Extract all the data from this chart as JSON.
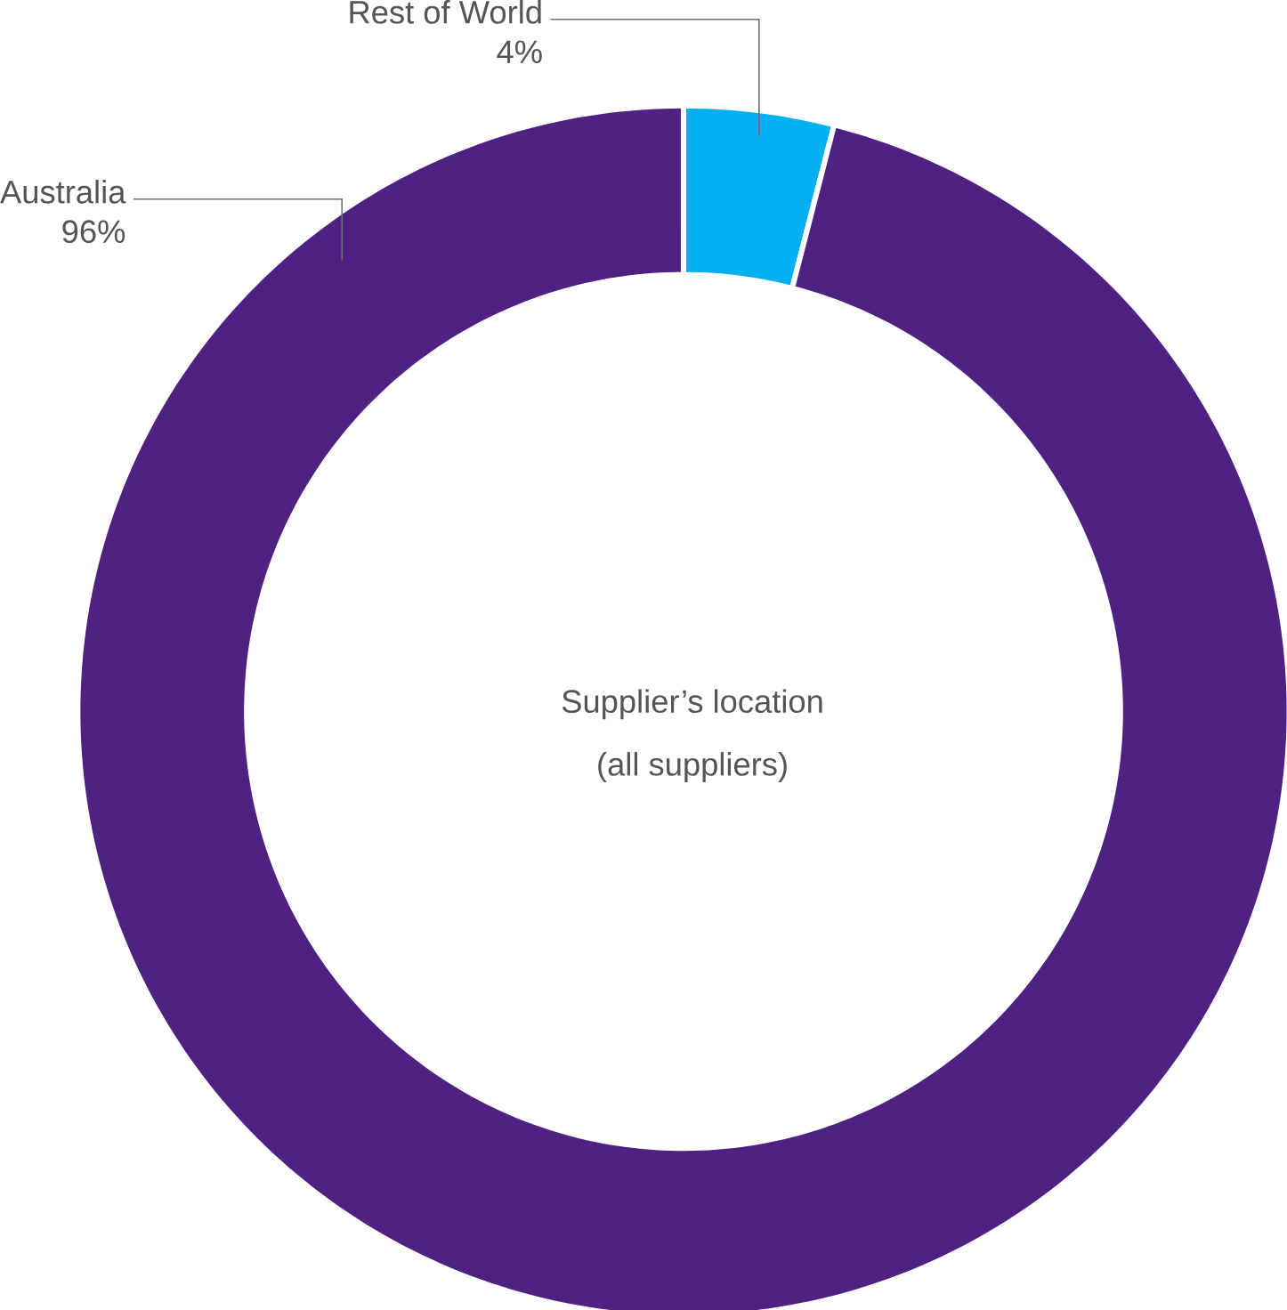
{
  "chart_data": {
    "type": "donut",
    "title": "Supplier’s location",
    "subtitle": "(all suppliers)",
    "categories": [
      "Rest of World",
      "Australia"
    ],
    "values": [
      4,
      96
    ],
    "colors": [
      "#00b0f0",
      "#4f2183"
    ],
    "value_labels": [
      "4%",
      "96%"
    ]
  }
}
